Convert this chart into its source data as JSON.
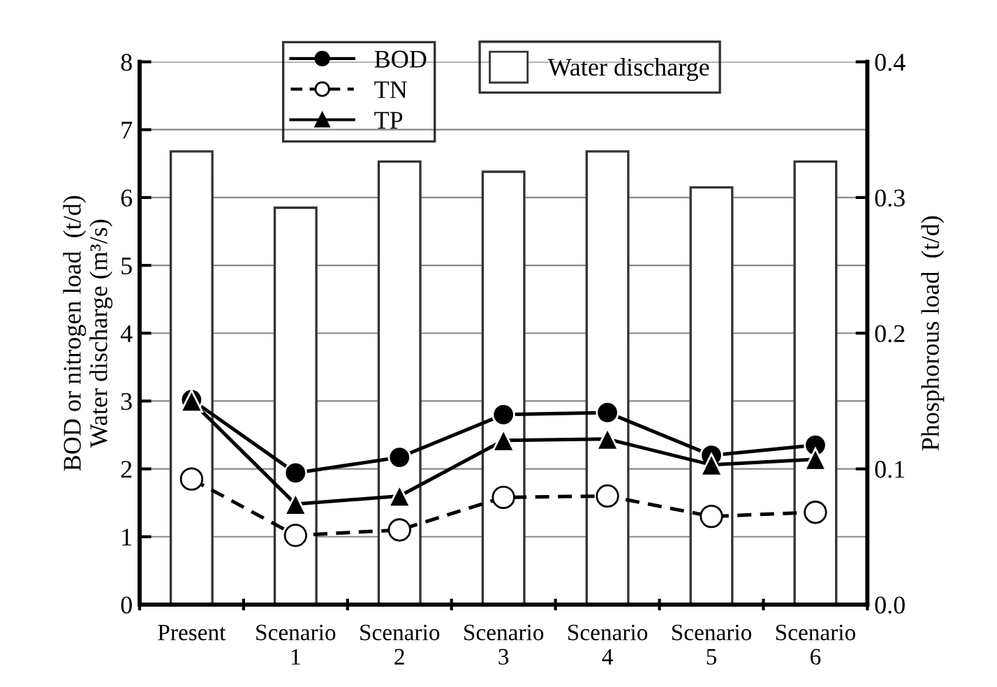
{
  "chart_data": {
    "type": "bar",
    "ylabel": "BOD or nitrogen load  (t/d)\nWater discharge (m³/s)",
    "y2label": "Phosphorous load  (t/d)",
    "categories": [
      "Present",
      "Scenario\n1",
      "Scenario\n2",
      "Scenario\n3",
      "Scenario\n4",
      "Scenario\n5",
      "Scenario\n6"
    ],
    "series": [
      {
        "name": "Water discharge",
        "color": "#ffffff",
        "values": [
          6.68,
          5.85,
          6.53,
          6.38,
          6.68,
          6.15,
          6.53
        ]
      },
      {
        "name": "BOD",
        "type": "line",
        "color": "#000000",
        "marker": "circle",
        "line_style": "solid",
        "values": [
          3.02,
          1.94,
          2.17,
          2.8,
          2.83,
          2.2,
          2.35
        ]
      },
      {
        "name": "TN",
        "type": "line",
        "color": "#000000",
        "marker": "circle",
        "line_style": "dashed",
        "values": [
          1.85,
          1.02,
          1.1,
          1.58,
          1.6,
          1.3,
          1.36
        ]
      },
      {
        "name": "TP",
        "type": "line",
        "axis": "y2",
        "color": "#000000",
        "marker": "triangle",
        "line_style": "solid",
        "values": [
          0.15,
          0.074,
          0.08,
          0.121,
          0.122,
          0.103,
          0.107
        ]
      }
    ],
    "ylim": [
      0,
      8
    ],
    "yticks": [
      0,
      1,
      2,
      3,
      4,
      5,
      6,
      7,
      8
    ],
    "y2lim": [
      0,
      0.4
    ],
    "y2ticks": [
      {
        "value": 0,
        "label": "0.0"
      },
      {
        "value": 0.1,
        "label": "0.1"
      },
      {
        "value": 0.2,
        "label": "0.2"
      },
      {
        "value": 0.3,
        "label": "0.3"
      },
      {
        "value": 0.4,
        "label": "0.4"
      }
    ],
    "grid": "y",
    "legend": "top"
  }
}
